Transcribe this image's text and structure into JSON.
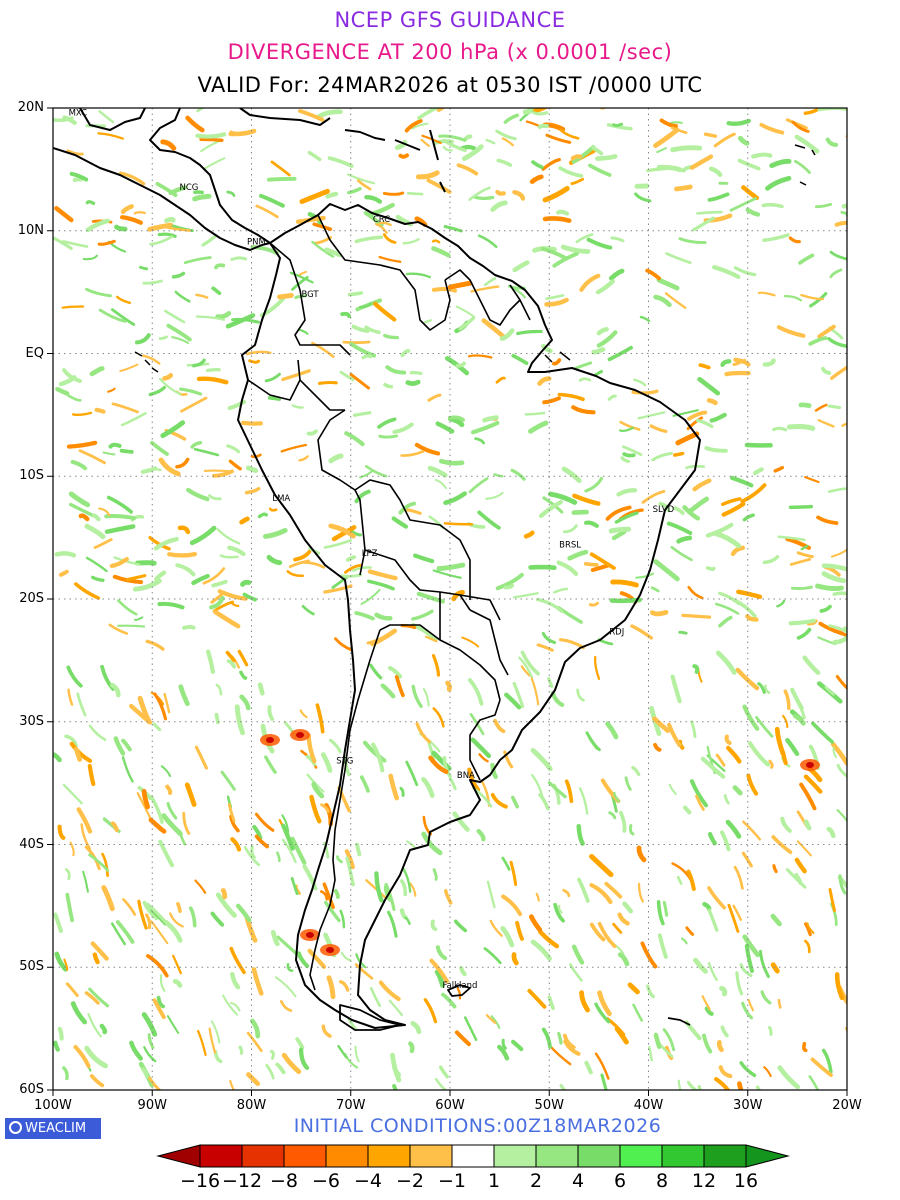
{
  "titles": {
    "line1": "NCEP GFS GUIDANCE",
    "line2": "DIVERGENCE AT 200 hPa (x 0.0001 /sec)",
    "line3": "VALID For: 24MAR2026 at 0530 IST /0000 UTC",
    "line1_color": "#8a2be2",
    "line2_color": "#e8198b",
    "line3_color": "#000000"
  },
  "lat_ticks": [
    "20N",
    "10N",
    "EQ",
    "10S",
    "20S",
    "30S",
    "40S",
    "50S",
    "60S"
  ],
  "lon_ticks": [
    "100W",
    "90W",
    "80W",
    "70W",
    "60W",
    "50W",
    "40W",
    "30W",
    "20W"
  ],
  "cities": [
    {
      "name": "MXC",
      "lon": -97.5,
      "lat": 19.4
    },
    {
      "name": "NCG",
      "lon": -86.3,
      "lat": 13.3
    },
    {
      "name": "PNM",
      "lon": -79.5,
      "lat": 8.9
    },
    {
      "name": "CRC",
      "lon": -66.9,
      "lat": 10.7
    },
    {
      "name": "BGT",
      "lon": -74.1,
      "lat": 4.6
    },
    {
      "name": "LMA",
      "lon": -77.0,
      "lat": -12.0
    },
    {
      "name": "LPZ",
      "lon": -68.1,
      "lat": -16.5
    },
    {
      "name": "BRSL",
      "lon": -47.9,
      "lat": -15.8
    },
    {
      "name": "SLVD",
      "lon": -38.5,
      "lat": -12.9
    },
    {
      "name": "RDJ",
      "lon": -43.2,
      "lat": -22.9
    },
    {
      "name": "STG",
      "lon": -70.6,
      "lat": -33.4
    },
    {
      "name": "BNA",
      "lon": -58.4,
      "lat": -34.6
    },
    {
      "name": "Falkland",
      "lon": -59.0,
      "lat": -51.7
    }
  ],
  "branding": {
    "logo_text": "WEACLIM"
  },
  "initial_conditions": "INITIAL CONDITIONS:00Z18MAR2026",
  "colorbar": {
    "labels": [
      "−16",
      "−12",
      "−8",
      "−6",
      "−4",
      "−2",
      "−1",
      "1",
      "2",
      "4",
      "6",
      "8",
      "12",
      "16"
    ],
    "colors": [
      "#a00000",
      "#c80000",
      "#e63200",
      "#ff5a00",
      "#ff8c00",
      "#ffa500",
      "#ffc04a",
      "#ffffff",
      "#b4f0a0",
      "#96e682",
      "#78dc69",
      "#50f050",
      "#32c832",
      "#1ea01e",
      "#14961e"
    ]
  },
  "map_extent": {
    "lon_min": -100,
    "lon_max": -20,
    "lat_min": -60,
    "lat_max": 20
  }
}
